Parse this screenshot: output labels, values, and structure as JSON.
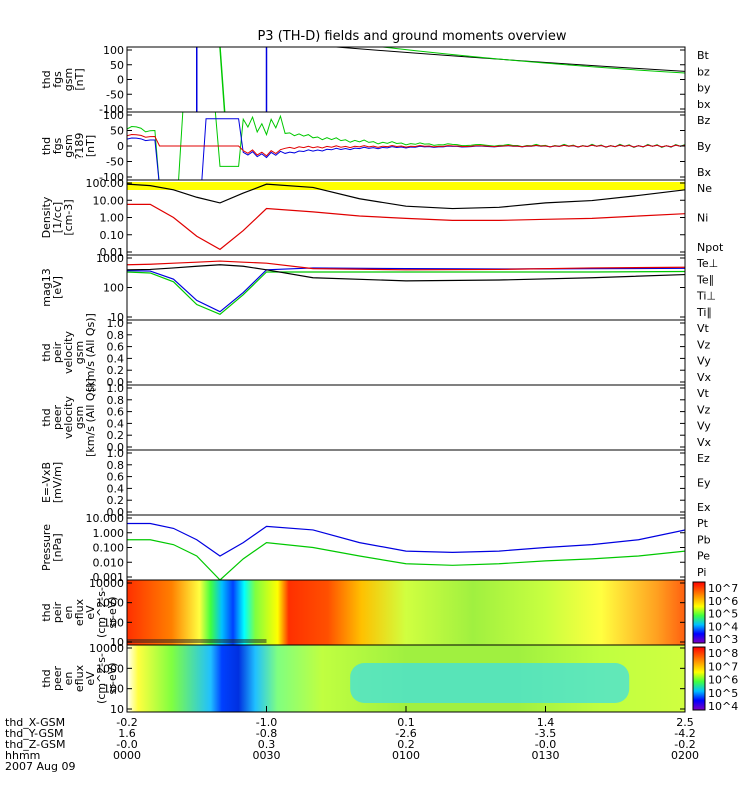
{
  "title": "P3 (TH-D) fields and ground moments overview",
  "colors": {
    "black": "#000000",
    "red": "#e00000",
    "green": "#00c800",
    "blue": "#0000e0",
    "yellow": "#ffff00"
  },
  "panels": [
    {
      "id": "fgs",
      "ylabel": [
        "thd",
        "fgs",
        "gsm",
        "[nT]"
      ],
      "yticks": [
        "100",
        "50",
        "0",
        "-50",
        "-100"
      ],
      "ylim": [
        -100,
        100
      ],
      "legend": [
        {
          "text": "Bt",
          "color": "#000000"
        },
        {
          "text": "bz",
          "color": "#e00000"
        },
        {
          "text": "by",
          "color": "#00c800"
        },
        {
          "text": "bx",
          "color": "#0000e0"
        }
      ]
    },
    {
      "id": "fgs2",
      "ylabel": [
        "thd",
        "fgs",
        "gsm",
        "?189",
        "[nT]"
      ],
      "yticks": [
        "100",
        "50",
        "0",
        "-50",
        "-100"
      ],
      "ylim": [
        -100,
        100
      ],
      "legend": [
        {
          "text": "Bz",
          "color": "#e00000"
        },
        {
          "text": "By",
          "color": "#00c800"
        },
        {
          "text": "Bx",
          "color": "#0000e0"
        }
      ]
    },
    {
      "id": "density",
      "ylabel": [
        "Density",
        "[1/cc]",
        "[cm-3]"
      ],
      "yticks": [
        "100.00",
        "10.00",
        "1.00",
        "0.10",
        "0.01"
      ],
      "ylim": [
        0.01,
        100
      ],
      "log": true,
      "legend": [
        {
          "text": "Ne",
          "color": "#e00000"
        },
        {
          "text": "Ni",
          "color": "#000000"
        },
        {
          "text": "Npot",
          "color": "#0000e0"
        }
      ]
    },
    {
      "id": "temp",
      "ylabel": [
        "mag13",
        "[eV]"
      ],
      "yticks": [
        "1000",
        "100",
        "10"
      ],
      "ylim": [
        10,
        1000
      ],
      "log": true,
      "legend": [
        {
          "text": "Te⊥",
          "color": "#e00000"
        },
        {
          "text": "Te∥",
          "color": "#000000"
        },
        {
          "text": "Ti⊥",
          "color": "#0000e0"
        },
        {
          "text": "Ti∥",
          "color": "#00c800"
        }
      ]
    },
    {
      "id": "peirv",
      "ylabel": [
        "thd",
        "peir",
        "velocity",
        "gsm",
        "[km/s (All Qs)]"
      ],
      "yticks": [
        "1.0",
        "0.8",
        "0.6",
        "0.4",
        "0.2",
        "0.0"
      ],
      "ylim": [
        0,
        1
      ],
      "legend": [
        {
          "text": "Vt",
          "color": "#000000"
        },
        {
          "text": "Vz",
          "color": "#e00000"
        },
        {
          "text": "Vy",
          "color": "#00c800"
        },
        {
          "text": "Vx",
          "color": "#0000e0"
        }
      ]
    },
    {
      "id": "peerv",
      "ylabel": [
        "thd",
        "peer",
        "velocity",
        "gsm",
        "[km/s (All Qs)]"
      ],
      "yticks": [
        "1.0",
        "0.8",
        "0.6",
        "0.4",
        "0.2",
        "0.0"
      ],
      "ylim": [
        0,
        1
      ],
      "legend": [
        {
          "text": "Vt",
          "color": "#000000"
        },
        {
          "text": "Vz",
          "color": "#e00000"
        },
        {
          "text": "Vy",
          "color": "#00c800"
        },
        {
          "text": "Vx",
          "color": "#0000e0"
        }
      ]
    },
    {
      "id": "efield",
      "ylabel": [
        "E=-VxB",
        "[mV/m]"
      ],
      "yticks": [
        "1.0",
        "0.8",
        "0.6",
        "0.4",
        "0.2",
        "0.0"
      ],
      "ylim": [
        0,
        1
      ],
      "legend": [
        {
          "text": "Ez",
          "color": "#e00000"
        },
        {
          "text": "Ey",
          "color": "#00c800"
        },
        {
          "text": "Ex",
          "color": "#0000e0"
        }
      ]
    },
    {
      "id": "pressure",
      "ylabel": [
        "Pressure",
        "[nPa]"
      ],
      "yticks": [
        "10.000",
        "1.000",
        "0.100",
        "0.010",
        "0.001"
      ],
      "ylim": [
        0.001,
        10
      ],
      "log": true,
      "legend": [
        {
          "text": "Pt",
          "color": "#000000"
        },
        {
          "text": "Pb",
          "color": "#e00000"
        },
        {
          "text": "Pe",
          "color": "#00c800"
        },
        {
          "text": "Pi",
          "color": "#0000e0"
        }
      ]
    },
    {
      "id": "peirspec",
      "ylabel": [
        "thd",
        "peir",
        "en",
        "eflux",
        "eV",
        "(cm^2-s-",
        "sr-eV)"
      ],
      "yticks": [
        "10000",
        "1000",
        "100",
        "10"
      ],
      "ylim": [
        5,
        20000
      ],
      "log": true,
      "colorbar": [
        "10^7",
        "10^6",
        "10^5",
        "10^4",
        "10^3"
      ]
    },
    {
      "id": "peerspec",
      "ylabel": [
        "thd",
        "peer",
        "en",
        "eflux",
        "eV",
        "(cm^2-s-",
        "sr-eV)"
      ],
      "yticks": [
        "10000",
        "1000",
        "100",
        "10"
      ],
      "ylim": [
        5,
        20000
      ],
      "log": true,
      "colorbar": [
        "10^8",
        "10^7",
        "10^6",
        "10^5",
        "10^4"
      ]
    }
  ],
  "xaxis": {
    "row_labels": [
      "thd_X-GSM",
      "thd_Y-GSM",
      "thd_Z-GSM",
      "hhmm",
      "2007 Aug 09"
    ],
    "ticks": [
      {
        "v": [
          "-0.2",
          "1.6",
          "-0.0",
          "0000"
        ]
      },
      {
        "v": [
          "-1.0",
          "-0.8",
          "0.3",
          "0030"
        ]
      },
      {
        "v": [
          "0.1",
          "-2.6",
          "0.2",
          "0100"
        ]
      },
      {
        "v": [
          "1.4",
          "-3.5",
          "-0.0",
          "0130"
        ]
      },
      {
        "v": [
          "2.5",
          "-4.2",
          "-0.2",
          "0200"
        ]
      }
    ]
  },
  "chart_data": {
    "type": "line",
    "xlabel": "hhmm",
    "xlim_minutes": [
      0,
      120
    ],
    "series": [
      {
        "name": "Ni",
        "panel": "density",
        "x": [
          0,
          5,
          10,
          15,
          20,
          25,
          30,
          40,
          50,
          60,
          70,
          80,
          90,
          100,
          110,
          120
        ],
        "values": [
          60,
          50,
          30,
          12,
          6,
          20,
          60,
          40,
          10,
          4,
          3,
          3.5,
          6,
          8,
          15,
          30
        ]
      },
      {
        "name": "Ne",
        "panel": "density",
        "x": [
          0,
          5,
          10,
          15,
          20,
          25,
          30,
          40,
          50,
          60,
          70,
          80,
          90,
          100,
          110,
          120
        ],
        "values": [
          5,
          5,
          1,
          0.1,
          0.02,
          0.2,
          3,
          2,
          1.2,
          0.9,
          0.7,
          0.7,
          0.8,
          0.9,
          1.2,
          1.6
        ]
      },
      {
        "name": "Pi",
        "panel": "pressure",
        "x": [
          0,
          5,
          10,
          15,
          20,
          25,
          30,
          40,
          50,
          60,
          70,
          80,
          90,
          100,
          110,
          120
        ],
        "values": [
          3,
          3,
          1.5,
          0.3,
          0.03,
          0.2,
          2,
          1.2,
          0.2,
          0.06,
          0.05,
          0.06,
          0.1,
          0.15,
          0.3,
          1.2
        ]
      },
      {
        "name": "Pe",
        "panel": "pressure",
        "x": [
          0,
          5,
          10,
          15,
          20,
          25,
          30,
          40,
          50,
          60,
          70,
          80,
          90,
          100,
          110,
          120
        ],
        "values": [
          0.3,
          0.3,
          0.15,
          0.03,
          0.001,
          0.02,
          0.2,
          0.1,
          0.03,
          0.01,
          0.008,
          0.01,
          0.015,
          0.02,
          0.03,
          0.06
        ]
      },
      {
        "name": "Ti∥",
        "panel": "temp",
        "x": [
          0,
          5,
          10,
          15,
          20,
          25,
          30,
          40,
          60,
          80,
          100,
          120
        ],
        "values": [
          300,
          280,
          150,
          30,
          15,
          60,
          300,
          300,
          300,
          300,
          300,
          310
        ]
      },
      {
        "name": "Ti⊥",
        "panel": "temp",
        "x": [
          0,
          5,
          10,
          15,
          20,
          25,
          30,
          40,
          60,
          80,
          100,
          120
        ],
        "values": [
          330,
          320,
          180,
          40,
          18,
          70,
          350,
          400,
          380,
          370,
          380,
          390
        ]
      },
      {
        "name": "Te⊥",
        "panel": "temp",
        "x": [
          0,
          5,
          10,
          15,
          20,
          25,
          30,
          40,
          60,
          80,
          100,
          120
        ],
        "values": [
          500,
          520,
          560,
          600,
          650,
          600,
          560,
          380,
          350,
          360,
          400,
          420
        ]
      },
      {
        "name": "Te∥",
        "panel": "temp",
        "x": [
          0,
          5,
          10,
          15,
          20,
          25,
          30,
          40,
          60,
          80,
          100,
          120
        ],
        "values": [
          350,
          360,
          400,
          450,
          500,
          450,
          350,
          200,
          160,
          170,
          200,
          250
        ]
      }
    ]
  }
}
